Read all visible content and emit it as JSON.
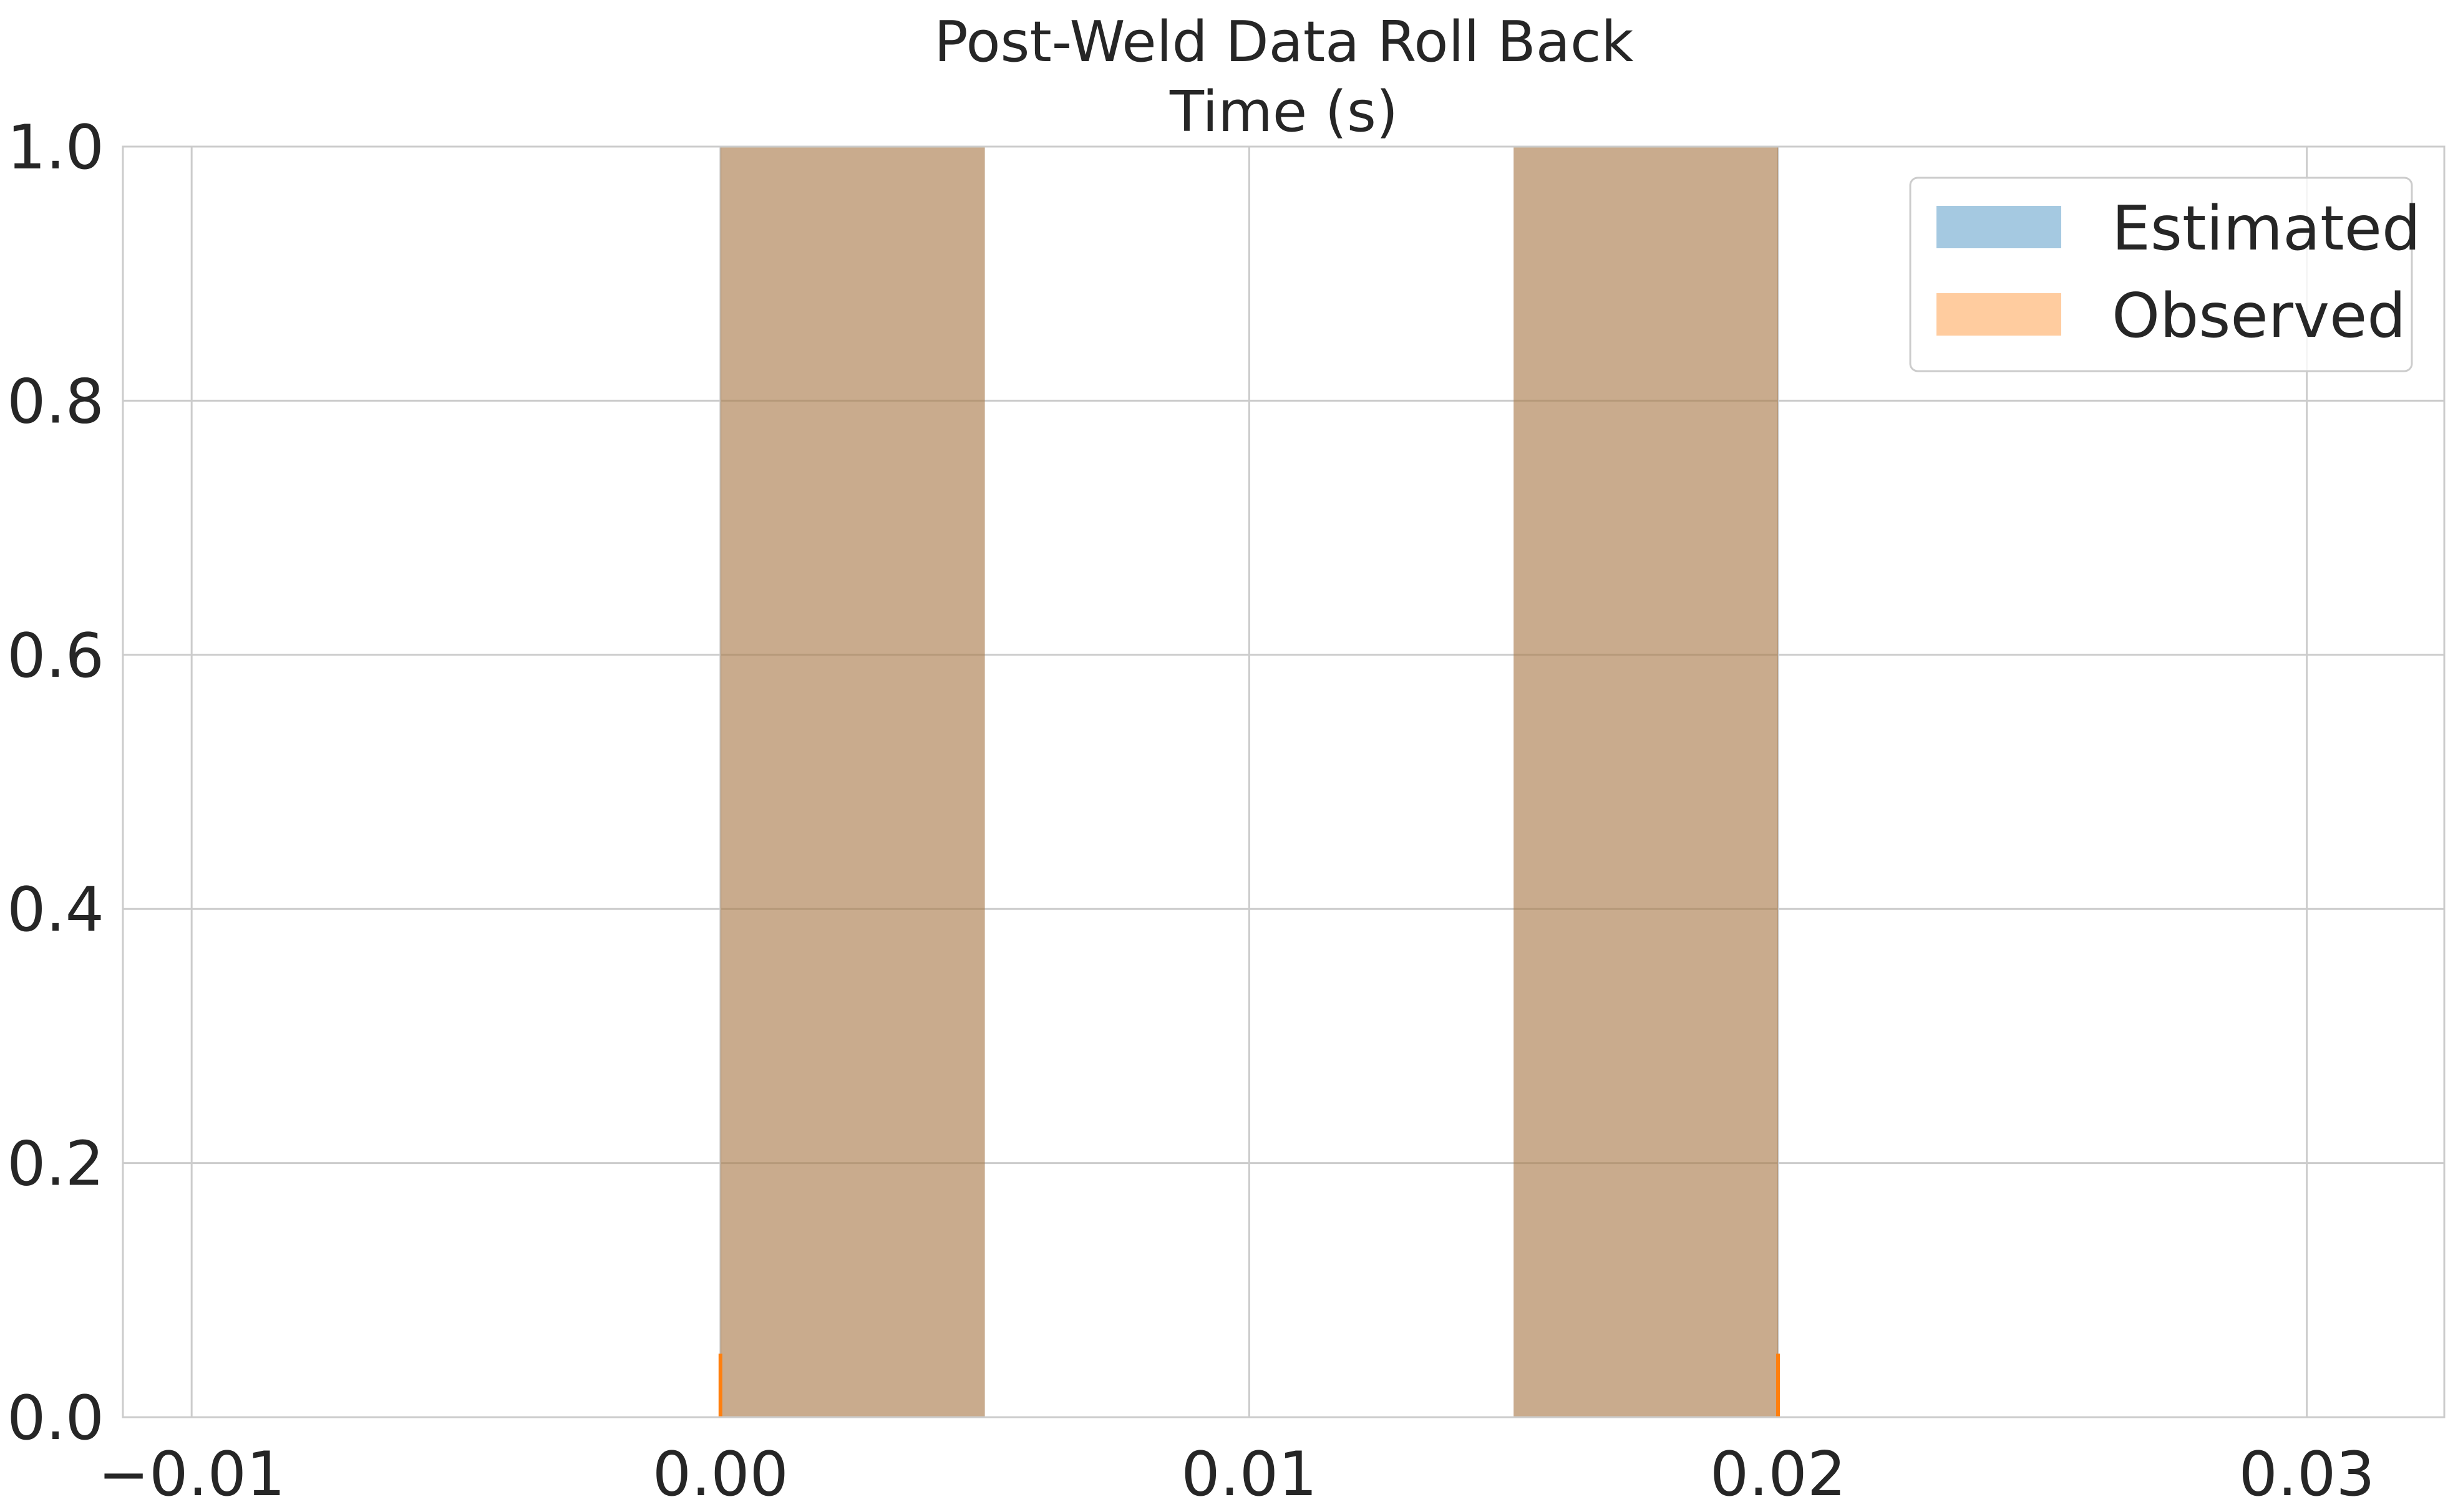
{
  "chart_data": {
    "type": "bar",
    "title": "Post-Weld Data Roll Back",
    "subtitle": "Time (s)",
    "xlim": [
      -0.0113,
      0.0326
    ],
    "ylim": [
      0,
      1.0
    ],
    "xticks": [
      -0.01,
      0.0,
      0.01,
      0.02,
      0.03
    ],
    "xtick_labels": [
      "−0.01",
      "0.00",
      "0.01",
      "0.02",
      "0.03"
    ],
    "yticks": [
      0.0,
      0.2,
      0.4,
      0.6,
      0.8,
      1.0
    ],
    "ytick_labels": [
      "0.0",
      "0.2",
      "0.4",
      "0.6",
      "0.8",
      "1.0"
    ],
    "grid": true,
    "legend_position": "top-right",
    "series": [
      {
        "name": "Estimated",
        "color": "#1f77b4",
        "opacity": 0.4,
        "bins": [
          {
            "x0": 0.0,
            "x1": 0.005,
            "value": 1.0
          },
          {
            "x0": 0.015,
            "x1": 0.02,
            "value": 1.0
          }
        ]
      },
      {
        "name": "Observed",
        "color": "#ff7f0e",
        "opacity": 0.4,
        "bins": [
          {
            "x0": 0.0,
            "x1": 0.005,
            "value": 1.0
          },
          {
            "x0": 0.015,
            "x1": 0.02,
            "value": 1.0
          }
        ]
      }
    ],
    "rug": {
      "color": "#ff7f0e",
      "x": [
        0.0,
        0.02
      ],
      "height": 0.05
    }
  }
}
